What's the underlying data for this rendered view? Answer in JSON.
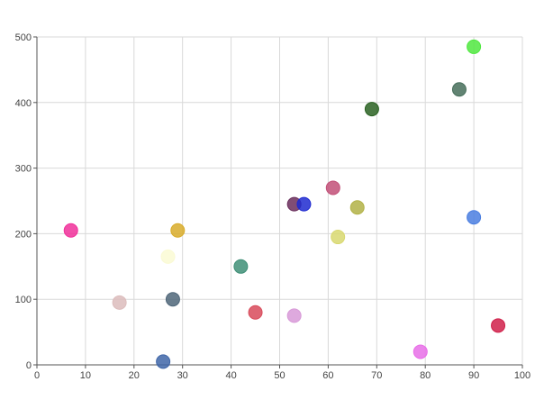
{
  "chart_data": {
    "type": "scatter",
    "title": "",
    "xlabel": "",
    "ylabel": "",
    "xlim": [
      0,
      100
    ],
    "ylim": [
      0,
      500
    ],
    "x_ticks": [
      0,
      10,
      20,
      30,
      40,
      50,
      60,
      70,
      80,
      90,
      100
    ],
    "y_ticks": [
      0,
      100,
      200,
      300,
      400,
      500
    ],
    "x_tick_labels": [
      "0",
      "10",
      "20",
      "30",
      "40",
      "50",
      "60",
      "70",
      "80",
      "90",
      "100"
    ],
    "y_tick_labels": [
      "0",
      "100",
      "200",
      "300",
      "400",
      "500"
    ],
    "grid": true,
    "legend": "none",
    "points": [
      {
        "x": 7,
        "y": 205,
        "color": "#f0309a"
      },
      {
        "x": 17,
        "y": 95,
        "color": "#dcbcbc"
      },
      {
        "x": 26,
        "y": 5,
        "color": "#3f66a8"
      },
      {
        "x": 27,
        "y": 165,
        "color": "#fafad4"
      },
      {
        "x": 28,
        "y": 100,
        "color": "#4f6679"
      },
      {
        "x": 29,
        "y": 205,
        "color": "#d8ac2a"
      },
      {
        "x": 42,
        "y": 150,
        "color": "#3f8f77"
      },
      {
        "x": 45,
        "y": 80,
        "color": "#d84a5a"
      },
      {
        "x": 53,
        "y": 75,
        "color": "#d89ad8"
      },
      {
        "x": 53,
        "y": 245,
        "color": "#6a2e5c"
      },
      {
        "x": 55,
        "y": 245,
        "color": "#1f2ad0"
      },
      {
        "x": 61,
        "y": 270,
        "color": "#c25078"
      },
      {
        "x": 62,
        "y": 195,
        "color": "#d8d870"
      },
      {
        "x": 66,
        "y": 240,
        "color": "#b2b246"
      },
      {
        "x": 69,
        "y": 390,
        "color": "#2a6222"
      },
      {
        "x": 79,
        "y": 20,
        "color": "#e86ee8"
      },
      {
        "x": 87,
        "y": 420,
        "color": "#466e5a"
      },
      {
        "x": 90,
        "y": 485,
        "color": "#50e840"
      },
      {
        "x": 90,
        "y": 225,
        "color": "#4a7ee0"
      },
      {
        "x": 95,
        "y": 60,
        "color": "#d0204a"
      }
    ]
  }
}
